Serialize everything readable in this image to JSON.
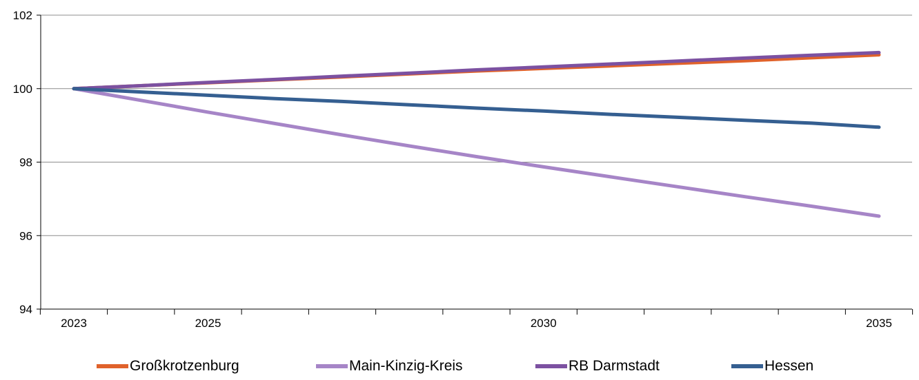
{
  "chart_data": {
    "type": "line",
    "title": "",
    "xlabel": "",
    "ylabel": "",
    "x": [
      2023,
      2024,
      2025,
      2026,
      2027,
      2028,
      2029,
      2030,
      2031,
      2032,
      2033,
      2034,
      2035
    ],
    "x_tick_labels": [
      "2023",
      "2025",
      "2030",
      "2035"
    ],
    "x_tick_label_values": [
      2023,
      2025,
      2030,
      2035
    ],
    "ylim": [
      94,
      102
    ],
    "y_ticks": [
      94,
      96,
      98,
      100,
      102
    ],
    "y_tick_labels": [
      "94",
      "96",
      "98",
      "100",
      "102"
    ],
    "grid": "horizontal",
    "legend_position": "bottom",
    "series": [
      {
        "name": "Großkrotzenburg",
        "color": "#e0622b",
        "values": [
          100,
          100.08,
          100.16,
          100.24,
          100.32,
          100.4,
          100.48,
          100.55,
          100.62,
          100.69,
          100.76,
          100.84,
          100.92
        ]
      },
      {
        "name": "Main-Kinzig-Kreis",
        "color": "#a685c7",
        "values": [
          100,
          99.68,
          99.36,
          99.05,
          98.74,
          98.44,
          98.15,
          97.87,
          97.6,
          97.33,
          97.06,
          96.8,
          96.53
        ]
      },
      {
        "name": "RB Darmstadt",
        "color": "#7c51a1",
        "values": [
          100,
          100.08,
          100.17,
          100.25,
          100.34,
          100.42,
          100.51,
          100.59,
          100.67,
          100.75,
          100.83,
          100.91,
          100.98
        ]
      },
      {
        "name": "Hessen",
        "color": "#355f91",
        "values": [
          100,
          99.91,
          99.82,
          99.73,
          99.65,
          99.56,
          99.47,
          99.39,
          99.3,
          99.22,
          99.14,
          99.06,
          98.95
        ]
      }
    ]
  }
}
